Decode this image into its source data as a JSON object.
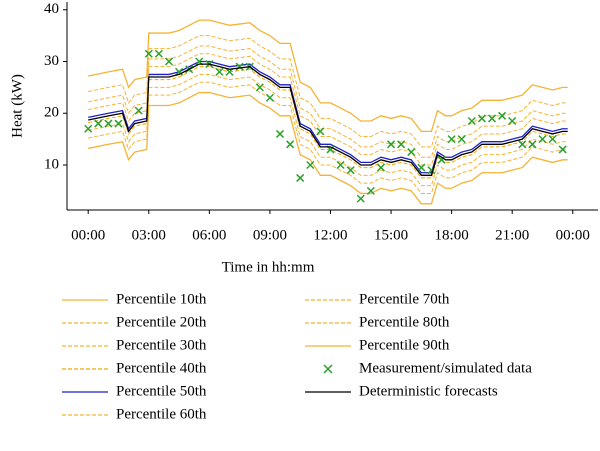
{
  "chart_data": {
    "type": "line",
    "xlabel": "Time in hh:mm",
    "ylabel": "Heat (kW)",
    "xlim": [
      -1.05,
      25.25
    ],
    "ylim": [
      1.3,
      41.5
    ],
    "xticks": [
      {
        "value": 0,
        "label": "00:00"
      },
      {
        "value": 3,
        "label": "03:00"
      },
      {
        "value": 6,
        "label": "06:00"
      },
      {
        "value": 9,
        "label": "09:00"
      },
      {
        "value": 12,
        "label": "12:00"
      },
      {
        "value": 15,
        "label": "15:00"
      },
      {
        "value": 18,
        "label": "18:00"
      },
      {
        "value": 21,
        "label": "21:00"
      },
      {
        "value": 24,
        "label": "00:00"
      }
    ],
    "yticks": [
      10,
      20,
      30,
      40
    ],
    "grid": false,
    "legend": "bottom",
    "x": [
      0,
      1,
      1.7,
      2,
      2.3,
      2.9,
      3,
      4,
      4.5,
      5,
      5.5,
      6,
      6.5,
      7,
      8,
      8.5,
      9,
      9.5,
      10,
      10.5,
      11,
      11.5,
      12,
      12.5,
      13,
      13.5,
      14,
      14.5,
      15,
      15.5,
      16,
      16.5,
      17,
      17.3,
      17.7,
      18,
      18.5,
      19,
      19.5,
      20,
      20.5,
      21,
      21.5,
      22,
      22.5,
      23,
      23.5,
      23.75
    ],
    "series": [
      {
        "name": "Percentile 10th",
        "color": "#f5b335",
        "linestyle": "solid",
        "values": [
          13.2,
          14,
          14.5,
          11,
          12.5,
          13,
          21.5,
          21.5,
          22,
          23,
          24,
          24,
          23.5,
          23,
          23.5,
          22,
          21,
          19.5,
          19.5,
          12,
          11,
          8,
          8,
          7,
          6,
          4.5,
          4.5,
          5.5,
          5,
          5.5,
          5,
          2.5,
          2.5,
          6.5,
          5.5,
          5.5,
          6.5,
          7,
          8.5,
          8.5,
          8.5,
          9,
          9.5,
          11.5,
          11,
          10.5,
          11,
          11
        ]
      },
      {
        "name": "Percentile 20th",
        "color": "#f5b335",
        "linestyle": "dashed",
        "values": [
          15.2,
          16,
          16.5,
          13,
          14.5,
          15,
          23.5,
          23.5,
          24,
          25,
          26,
          26,
          25.5,
          25,
          25.5,
          24,
          23,
          21.5,
          21.5,
          14,
          13,
          10,
          10,
          9,
          8,
          6.5,
          6.5,
          7.5,
          7,
          7.5,
          7,
          4.5,
          4.5,
          8.5,
          7.5,
          7.5,
          8.5,
          9,
          10.5,
          10.5,
          10.5,
          11,
          11.5,
          13.5,
          13,
          12.5,
          13,
          13
        ]
      },
      {
        "name": "Percentile 30th",
        "color": "#f5b335",
        "linestyle": "dashed",
        "values": [
          16.7,
          17.5,
          18,
          14.5,
          16,
          16.5,
          25,
          25,
          25.5,
          26.5,
          27.5,
          27.5,
          27,
          26.5,
          27,
          25.5,
          24.5,
          23,
          23,
          15.5,
          14.5,
          11.5,
          11.5,
          10.5,
          9.5,
          8,
          8,
          9,
          8.5,
          9,
          8.5,
          6,
          6,
          10,
          9,
          9,
          10,
          10.5,
          12,
          12,
          12,
          12.5,
          13,
          15,
          14.5,
          14,
          14.5,
          14.5
        ]
      },
      {
        "name": "Percentile 40th",
        "color": "#f0a800",
        "linestyle": "dashed",
        "values": [
          18.2,
          19,
          19.5,
          16,
          17.5,
          18,
          26.5,
          26.5,
          27,
          28,
          29,
          29,
          28.5,
          28,
          28.5,
          27,
          26,
          24.5,
          24.5,
          17,
          16,
          13,
          13,
          12,
          11,
          9.5,
          9.5,
          10.5,
          10,
          10.5,
          10,
          7.5,
          7.5,
          11.5,
          10.5,
          10.5,
          11.5,
          12,
          13.5,
          13.5,
          13.5,
          14,
          14.5,
          16.5,
          16,
          15.5,
          16,
          16
        ]
      },
      {
        "name": "Percentile 50th",
        "color": "#1f1fc8",
        "linestyle": "solid",
        "values": [
          19.2,
          20,
          20.5,
          17,
          18.5,
          19,
          27.5,
          27.5,
          28,
          29,
          30,
          30,
          29.5,
          29,
          29.5,
          28,
          27,
          25.5,
          25.5,
          18,
          17,
          14,
          14,
          13,
          12,
          10.5,
          10.5,
          11.5,
          11,
          11.5,
          11,
          8.5,
          8.5,
          12.5,
          11.5,
          11.5,
          12.5,
          13,
          14.5,
          14.5,
          14.5,
          15,
          15.5,
          17.5,
          17,
          16.5,
          17,
          17
        ]
      },
      {
        "name": "Percentile 60th",
        "color": "#f5b335",
        "linestyle": "dashed",
        "values": [
          20.7,
          21.5,
          22,
          18.5,
          20,
          20.5,
          29,
          29,
          29.5,
          30.5,
          31.5,
          31.5,
          31,
          30.5,
          31,
          29.5,
          28.5,
          27,
          27,
          19.5,
          18.5,
          15.5,
          15.5,
          14.5,
          13.5,
          12,
          12,
          13,
          12.5,
          13,
          12.5,
          10,
          10,
          14,
          13,
          13,
          14,
          14.5,
          16,
          16,
          16,
          16.5,
          17,
          19,
          18.5,
          18,
          18.5,
          18.5
        ]
      },
      {
        "name": "Percentile 70th",
        "color": "#f5b335",
        "linestyle": "dashed",
        "values": [
          22.2,
          23,
          23.5,
          20,
          21.5,
          22,
          30.5,
          30.5,
          31,
          32,
          33,
          33,
          32.5,
          32,
          32.5,
          31,
          30,
          28.5,
          28.5,
          21,
          20,
          17,
          17,
          16,
          15,
          13.5,
          13.5,
          14.5,
          14,
          14.5,
          14,
          11.5,
          11.5,
          15.5,
          14.5,
          14.5,
          15.5,
          16,
          17.5,
          17.5,
          17.5,
          18,
          18.5,
          20.5,
          20,
          19.5,
          20,
          20
        ]
      },
      {
        "name": "Percentile 80th",
        "color": "#f5b335",
        "linestyle": "dashed",
        "values": [
          24.2,
          25,
          25.5,
          22,
          23.5,
          24,
          32.5,
          32.5,
          33,
          34,
          35,
          35,
          34.5,
          34,
          34.5,
          33,
          32,
          30.5,
          30.5,
          23,
          22,
          19,
          19,
          18,
          17,
          15.5,
          15.5,
          16.5,
          16,
          16.5,
          16,
          13.5,
          13.5,
          17.5,
          16.5,
          16.5,
          17.5,
          18,
          19.5,
          19.5,
          19.5,
          20,
          20.5,
          22.5,
          22,
          21.5,
          22,
          22
        ]
      },
      {
        "name": "Percentile 90th",
        "color": "#f5b335",
        "linestyle": "solid",
        "values": [
          27.2,
          28,
          28.5,
          25,
          26.5,
          27,
          35.5,
          35.5,
          36,
          37,
          38,
          38,
          37.5,
          37,
          37.5,
          36,
          35,
          33.5,
          33.5,
          26,
          25,
          22,
          22,
          21,
          20,
          18.5,
          18.5,
          19.5,
          19,
          19.5,
          19,
          16.5,
          16.5,
          20.5,
          19.5,
          19.5,
          20.5,
          21,
          22.5,
          22.5,
          22.5,
          23,
          23.5,
          25.5,
          25,
          24.5,
          25,
          25
        ]
      },
      {
        "name": "Measurement/simulated data",
        "color": "#2ca02c",
        "marker": "x",
        "x": [
          0,
          0.5,
          1,
          1.5,
          2.5,
          3,
          3.5,
          4,
          4.5,
          5,
          5.5,
          6,
          6.5,
          7,
          7.5,
          8,
          8.5,
          9,
          9.5,
          10,
          10.5,
          11,
          11.5,
          12,
          12.5,
          13,
          13.5,
          14,
          14.5,
          15,
          15.5,
          16,
          16.5,
          17,
          17.5,
          18,
          18.5,
          19,
          19.5,
          20,
          20.5,
          21,
          21.5,
          22,
          22.5,
          23,
          23.5
        ],
        "values": [
          17,
          18,
          18,
          18,
          20.5,
          31.5,
          31.5,
          30,
          28,
          28.5,
          30,
          29.5,
          28,
          28,
          29,
          29,
          25,
          23,
          16,
          14,
          7.5,
          10,
          16.5,
          13,
          10,
          9,
          3.5,
          5,
          9.5,
          14,
          14,
          12.5,
          9.5,
          9,
          11,
          15,
          15,
          18.5,
          19,
          19,
          19.5,
          18.5,
          14,
          14,
          15,
          15,
          13
        ]
      },
      {
        "name": "Deterministic forecasts",
        "color": "#000000",
        "linestyle": "solid",
        "values": [
          18.7,
          19.5,
          20,
          16.5,
          18,
          18.5,
          27,
          27,
          27.5,
          28.5,
          29.5,
          29.5,
          29,
          28.5,
          29,
          27.5,
          26.5,
          25,
          25,
          17.5,
          16.5,
          13.5,
          13.5,
          12.5,
          11.5,
          10,
          10,
          11,
          10.5,
          11,
          10.5,
          8,
          8,
          12,
          11,
          11,
          12,
          12.5,
          14,
          14,
          14,
          14.5,
          15,
          17,
          16.5,
          16,
          16.5,
          16.5
        ]
      }
    ]
  }
}
